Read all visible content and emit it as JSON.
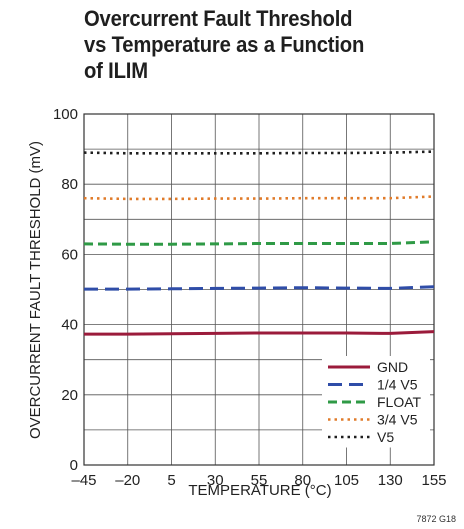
{
  "title_lines": [
    "Overcurrent Fault Threshold",
    "vs Temperature as a Function",
    "of ILIM"
  ],
  "footnote": "7872 G18",
  "chart_data": {
    "type": "line",
    "xlabel": "TEMPERATURE (°C)",
    "ylabel": "OVERCURRENT FAULT THRESHOLD (mV)",
    "xlim": [
      -45,
      155
    ],
    "ylim": [
      0,
      100
    ],
    "x_ticks": [
      -45,
      -20,
      5,
      30,
      55,
      80,
      105,
      130,
      155
    ],
    "x_tick_labels": [
      "–45",
      "–20",
      "5",
      "30",
      "55",
      "80",
      "105",
      "130",
      "155"
    ],
    "y_ticks": [
      0,
      20,
      40,
      60,
      80,
      100
    ],
    "y_tick_labels": [
      "0",
      "20",
      "40",
      "60",
      "80",
      "100"
    ],
    "grid": true,
    "legend_position": "bottom-right",
    "x": [
      -45,
      -20,
      5,
      30,
      55,
      80,
      105,
      130,
      155
    ],
    "series": [
      {
        "name": "GND",
        "style": "solid",
        "color": "#9b1b3b",
        "values": [
          37.3,
          37.3,
          37.4,
          37.5,
          37.6,
          37.6,
          37.6,
          37.5,
          38.0
        ]
      },
      {
        "name": "1/4 V5",
        "style": "longdash",
        "color": "#2f4da8",
        "values": [
          50.1,
          50.1,
          50.2,
          50.3,
          50.4,
          50.5,
          50.4,
          50.3,
          50.8
        ]
      },
      {
        "name": "FLOAT",
        "style": "dash",
        "color": "#2f9a46",
        "values": [
          63.0,
          62.9,
          62.9,
          63.0,
          63.1,
          63.1,
          63.1,
          63.1,
          63.6
        ]
      },
      {
        "name": "3/4 V5",
        "style": "dot",
        "color": "#e07b2a",
        "values": [
          76.0,
          75.8,
          75.8,
          75.9,
          75.9,
          76.0,
          76.0,
          76.0,
          76.5
        ]
      },
      {
        "name": "V5",
        "style": "dot",
        "color": "#1f1f1f",
        "values": [
          89.0,
          88.8,
          88.8,
          88.8,
          88.8,
          88.9,
          88.9,
          89.0,
          89.3
        ]
      }
    ],
    "colors": {
      "grid": "#555555",
      "frame": "#333333"
    }
  }
}
